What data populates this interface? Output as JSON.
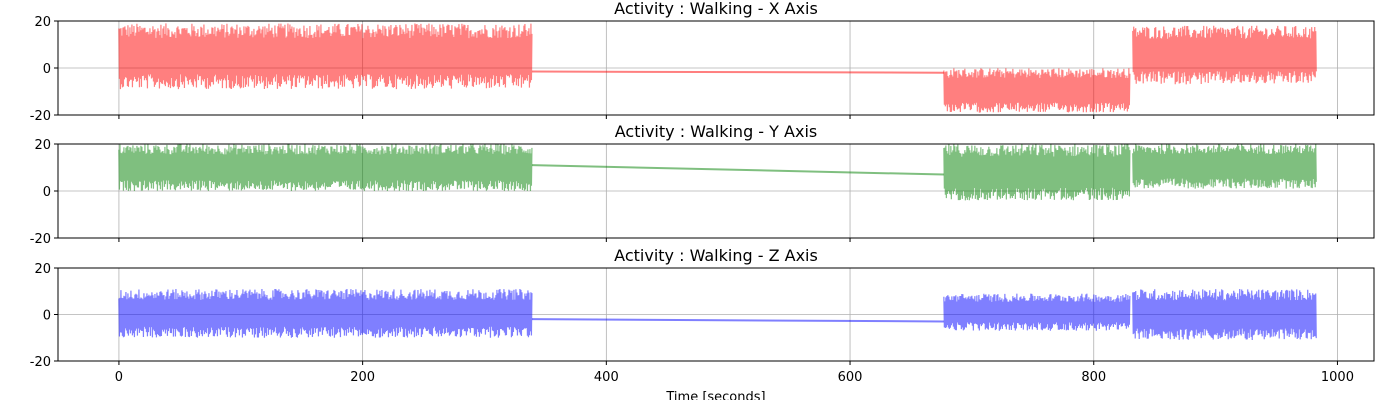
{
  "chart_data": [
    {
      "type": "area",
      "title": "Activity : Walking - X Axis",
      "color": "#ff0000",
      "xlim": [
        -50,
        1030
      ],
      "ylim": [
        -20,
        20
      ],
      "yticks": [
        "20",
        "0",
        "-20"
      ],
      "xticks": [
        "0",
        "200",
        "400",
        "600",
        "800",
        "1000"
      ],
      "show_xtick_labels": false,
      "grid": true,
      "segments": [
        {
          "x_start": 0,
          "x_end": 339,
          "y_min": -9,
          "y_max": 19
        },
        {
          "x_start": 677,
          "x_end": 830,
          "y_min": -19,
          "y_max": 0
        },
        {
          "x_start": 832,
          "x_end": 983,
          "y_min": -7,
          "y_max": 18
        }
      ],
      "gap_line": {
        "x": [
          339,
          677
        ],
        "y": [
          -1.5,
          -2
        ]
      }
    },
    {
      "type": "area",
      "title": "Activity : Walking - Y Axis",
      "color": "#008000",
      "xlim": [
        -50,
        1030
      ],
      "ylim": [
        -20,
        20
      ],
      "yticks": [
        "20",
        "0",
        "-20"
      ],
      "xticks": [
        "0",
        "200",
        "400",
        "600",
        "800",
        "1000"
      ],
      "show_xtick_labels": false,
      "grid": true,
      "segments": [
        {
          "x_start": 0,
          "x_end": 339,
          "y_min": 0,
          "y_max": 20
        },
        {
          "x_start": 677,
          "x_end": 830,
          "y_min": -4,
          "y_max": 20
        },
        {
          "x_start": 832,
          "x_end": 983,
          "y_min": 1,
          "y_max": 20
        }
      ],
      "gap_line": {
        "x": [
          339,
          677
        ],
        "y": [
          11,
          7
        ]
      }
    },
    {
      "type": "area",
      "title": "Activity : Walking - Z Axis",
      "color": "#0000ff",
      "xlim": [
        -50,
        1030
      ],
      "ylim": [
        -20,
        20
      ],
      "yticks": [
        "20",
        "0",
        "-20"
      ],
      "xticks": [
        "0",
        "200",
        "400",
        "600",
        "800",
        "1000"
      ],
      "show_xtick_labels": true,
      "xlabel": "Time [seconds]",
      "grid": true,
      "segments": [
        {
          "x_start": 0,
          "x_end": 339,
          "y_min": -10,
          "y_max": 11
        },
        {
          "x_start": 677,
          "x_end": 830,
          "y_min": -7,
          "y_max": 9
        },
        {
          "x_start": 832,
          "x_end": 983,
          "y_min": -11,
          "y_max": 11
        }
      ],
      "gap_line": {
        "x": [
          339,
          677
        ],
        "y": [
          -2,
          -3
        ]
      }
    }
  ]
}
